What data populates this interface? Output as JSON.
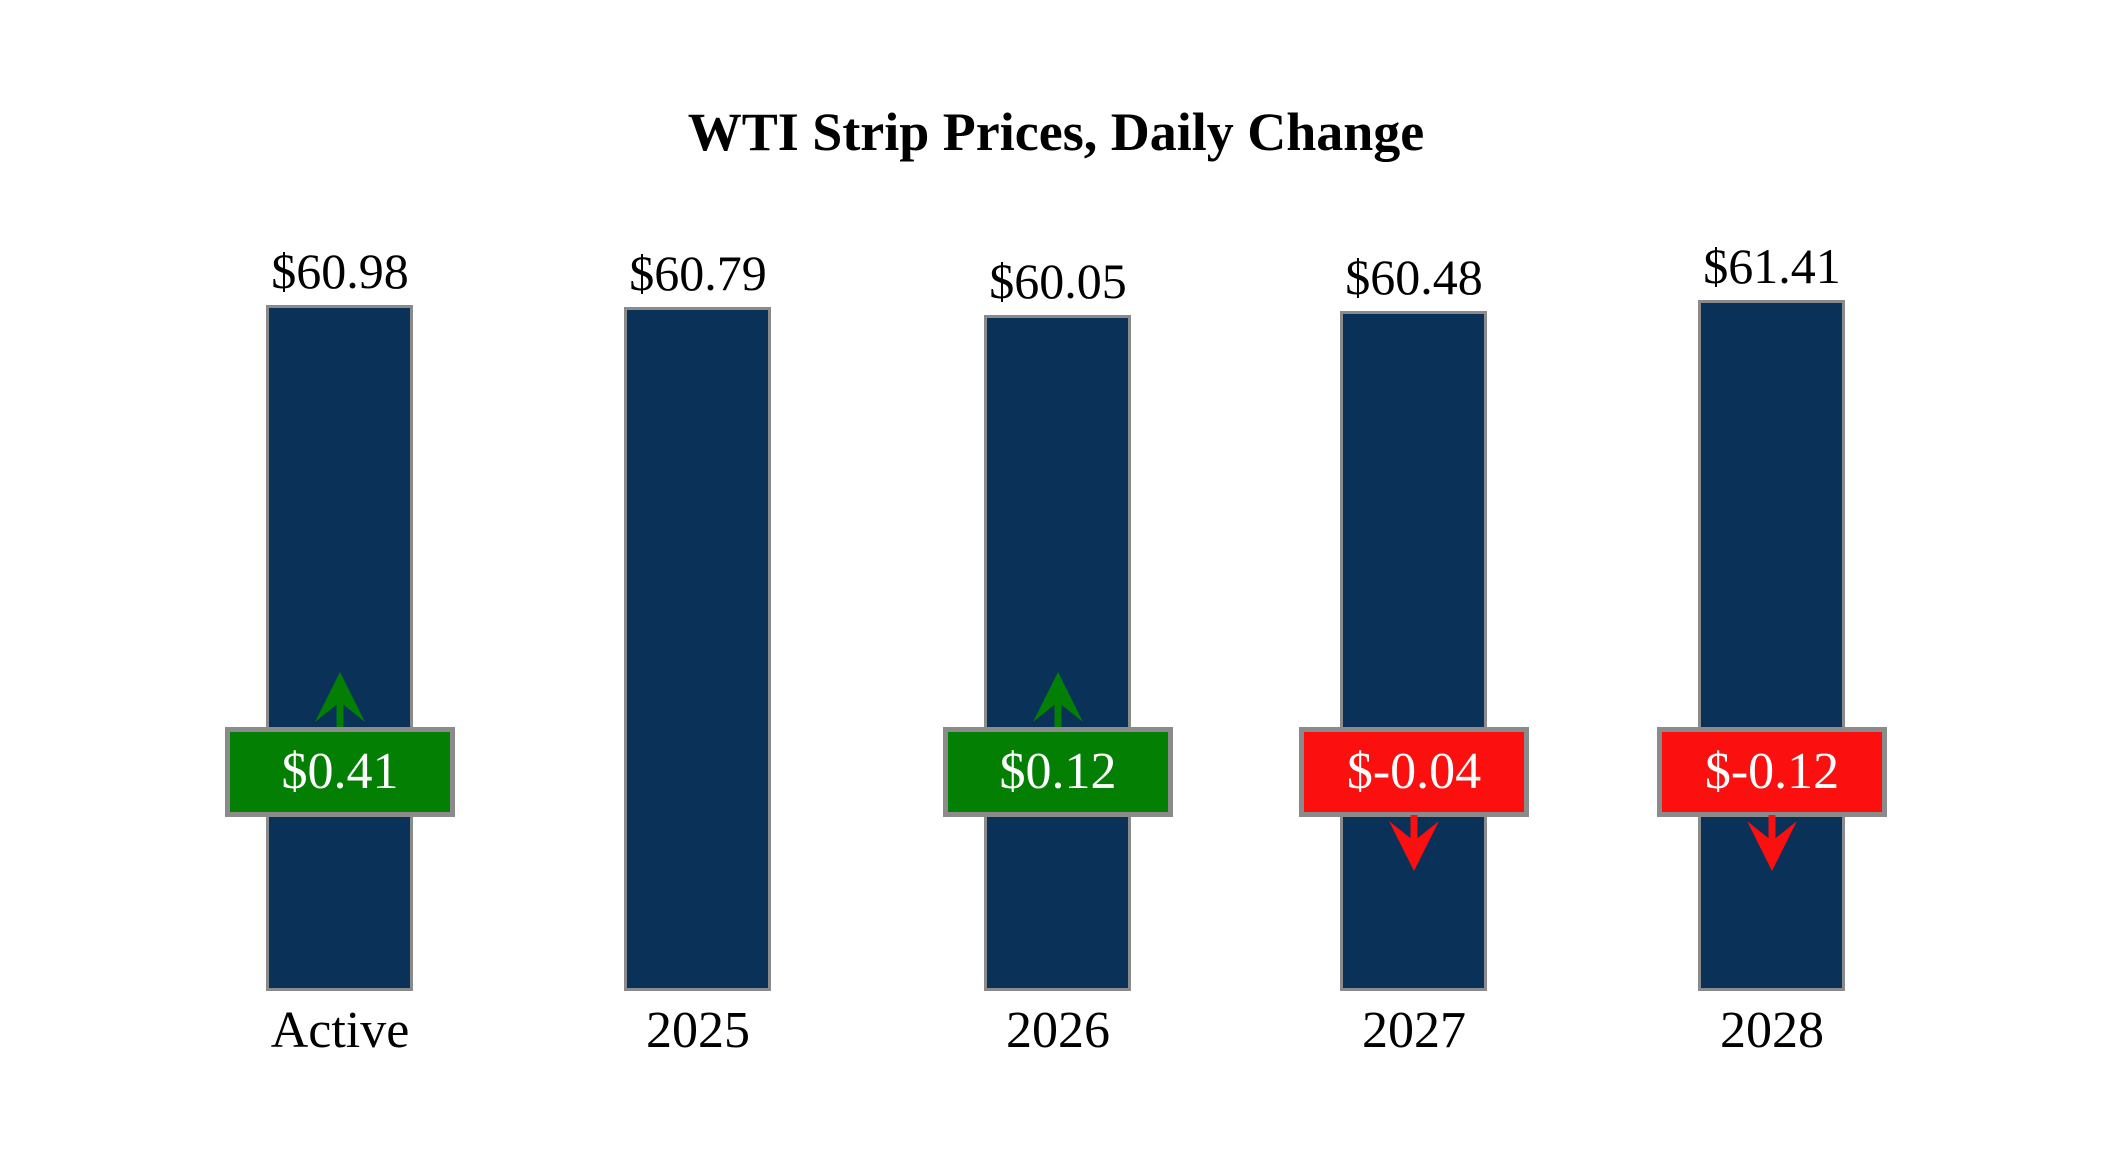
{
  "chart_data": {
    "type": "bar",
    "title": "WTI Strip Prices, Daily Change",
    "xlabel": "",
    "ylabel": "",
    "ylim": [
      0,
      61.41
    ],
    "grid": false,
    "legend": "none",
    "categories": [
      "Active",
      "2025",
      "2026",
      "2027",
      "2028"
    ],
    "values": [
      60.98,
      60.79,
      60.05,
      60.48,
      61.41
    ],
    "bars": [
      {
        "category": "Active",
        "price": 60.98,
        "price_label": "$60.98",
        "change": 0.41,
        "change_label": "$0.41",
        "direction": "up"
      },
      {
        "category": "2025",
        "price": 60.79,
        "price_label": "$60.79",
        "change": null,
        "change_label": "",
        "direction": "none"
      },
      {
        "category": "2026",
        "price": 60.05,
        "price_label": "$60.05",
        "change": 0.12,
        "change_label": "$0.12",
        "direction": "up"
      },
      {
        "category": "2027",
        "price": 60.48,
        "price_label": "$60.48",
        "change": -0.04,
        "change_label": "$-0.04",
        "direction": "down"
      },
      {
        "category": "2028",
        "price": 61.41,
        "price_label": "$61.41",
        "change": -0.12,
        "change_label": "$-0.12",
        "direction": "down"
      }
    ],
    "colors": {
      "bar_fill": "#0A3158",
      "bar_border": "#8B8B8B",
      "positive": "#038003",
      "negative": "#FB0F0F",
      "badge_border": "#8B8B8B",
      "badge_text": "#FFFFFF",
      "label_text": "#000000",
      "background": "#FFFFFF"
    }
  }
}
